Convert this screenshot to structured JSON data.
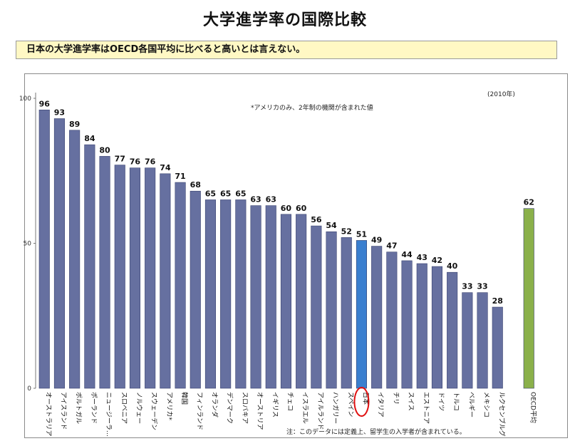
{
  "title": "大学進学率の国際比較",
  "subtitle": "日本の大学進学率はOECD各国平均に比べると高いとは言えない。",
  "chart_data": {
    "type": "bar",
    "title": "大学進学率の国際比較",
    "xlabel": "",
    "ylabel": "",
    "ylim": [
      0,
      100
    ],
    "yticks": [
      0,
      50,
      100
    ],
    "categories": [
      "オーストラリア",
      "アイスランド",
      "ポルトガル",
      "ポーランド",
      "ニュージーラ…",
      "スロベニア",
      "ノルウェー",
      "スウェーデン",
      "アメリカ*",
      "韓国",
      "フィンランド",
      "オランダ",
      "デンマーク",
      "スロバキア",
      "オーストリア",
      "イギリス",
      "チェコ",
      "イスラエル",
      "アイルランド",
      "ハンガリー",
      "スペイン",
      "日本",
      "イタリア",
      "チリ",
      "スイス",
      "エストニア",
      "ドイツ",
      "トルコ",
      "ベルギー",
      "メキシコ",
      "ルクセンブルグ",
      "OECD平均"
    ],
    "values": [
      96,
      93,
      89,
      84,
      80,
      77,
      76,
      76,
      74,
      71,
      68,
      65,
      65,
      65,
      63,
      63,
      60,
      60,
      56,
      54,
      52,
      51,
      49,
      47,
      44,
      43,
      42,
      40,
      33,
      33,
      28,
      62
    ],
    "colors": {
      "default": "#6670a0",
      "japan": "#3a7fcf",
      "oecd": "#8ab04a",
      "highlight_ring": "#e01010"
    },
    "highlight": "日本",
    "annotations": [
      "*アメリカのみ、2年制の機関が含まれた値",
      "(2010年)"
    ],
    "footnote": "注：このデータには定義上、留学生の入学者が含まれている。",
    "grid": false
  }
}
